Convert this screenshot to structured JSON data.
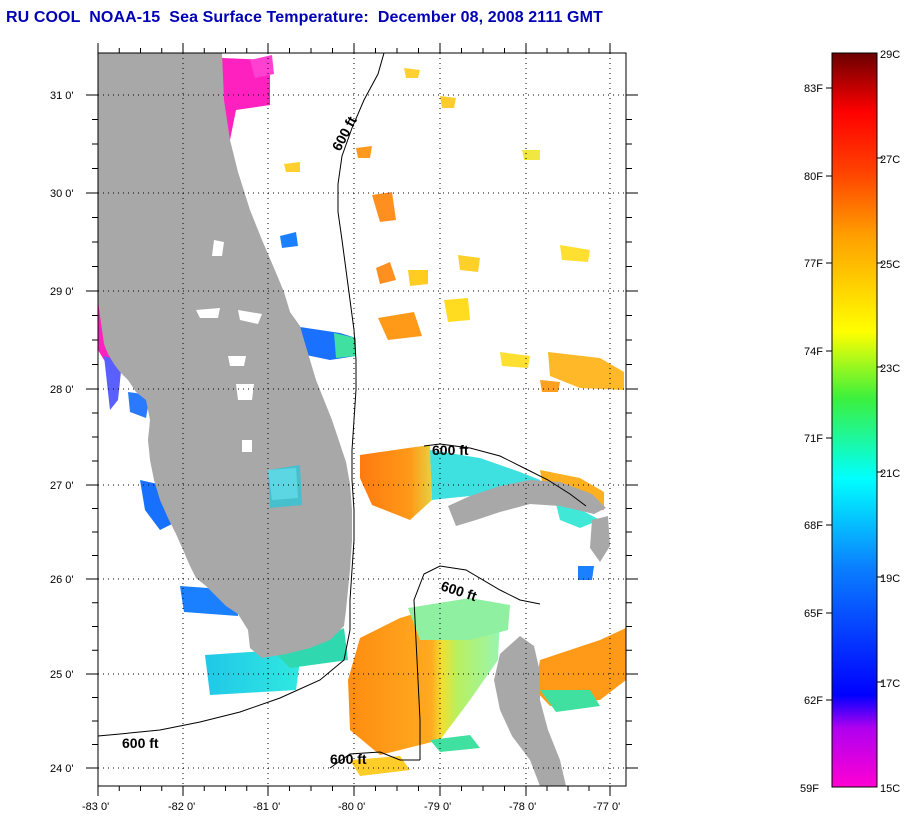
{
  "title": "RU COOL  NOAA-15  Sea Surface Temperature:  December 08, 2008 2111 GMT",
  "map": {
    "lat_ticks": [
      "31 0'",
      "30 0'",
      "29 0'",
      "28 0'",
      "27 0'",
      "26 0'",
      "25 0'",
      "24 0'"
    ],
    "lon_ticks": [
      "-83 0'",
      "-82 0'",
      "-81 0'",
      "-80 0'",
      "-79 0'",
      "-78 0'",
      "-77 0'"
    ],
    "isobath_label": "600 ft",
    "grid": "dotted"
  },
  "colorbar": {
    "fahrenheit_labels": [
      "83F",
      "80F",
      "77F",
      "74F",
      "71F",
      "68F",
      "65F",
      "62F",
      "59F"
    ],
    "celsius_labels": [
      "29C",
      "27C",
      "25C",
      "23C",
      "21C",
      "19C",
      "17C",
      "15C"
    ],
    "colors": [
      "#6b0000",
      "#ff0000",
      "#ff7a00",
      "#ffff00",
      "#33e833",
      "#00ffff",
      "#0080ff",
      "#0000ff",
      "#9000ff",
      "#ff00d2"
    ]
  },
  "colors": {
    "land": "#a8a8a8",
    "title": "#0000b4"
  }
}
